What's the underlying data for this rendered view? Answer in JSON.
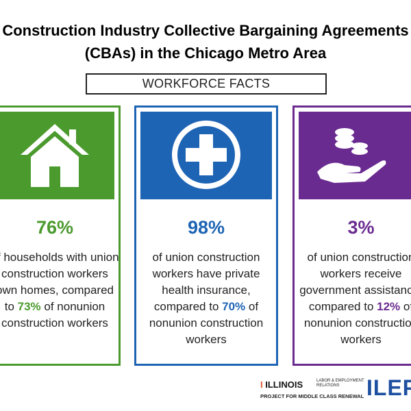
{
  "header": {
    "title": "Construction Industry Collective Bargaining Agreements (CBAs) in the Chicago Metro Area",
    "subtitle": "WORKFORCE FACTS"
  },
  "cards": [
    {
      "stat": "76%",
      "text_before": "of households with union construction workers own homes, compared to",
      "highlight": "73%",
      "text_after": "of nonunion construction workers"
    },
    {
      "stat": "98%",
      "text_before": "of union construction workers have private health insurance, compared to",
      "highlight": "70%",
      "text_after": "of nonunion construction workers"
    },
    {
      "stat": "3%",
      "text_before": "of union construction workers receive government assistance, compared to",
      "highlight": "12%",
      "text_after": "of nonunion construction workers"
    }
  ],
  "footer": {
    "logo1": "ILLINOIS",
    "logo1_sub": "LABOR & EMPLOYMENT RELATIONS",
    "logo1_caption": "PROJECT FOR MIDDLE CLASS RENEWAL",
    "logo2": "ILEPI"
  }
}
